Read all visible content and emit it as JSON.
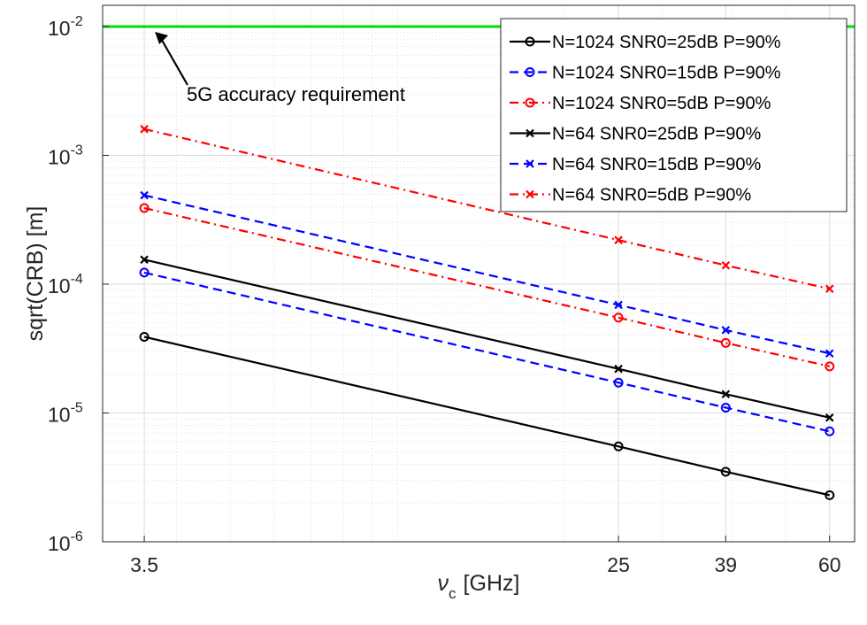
{
  "chart_data": {
    "type": "line",
    "xscale": "log",
    "yscale": "log",
    "xlabel": "ν",
    "xlabel_sub": "c",
    "xlabel_unit": "[GHz]",
    "ylabel": "sqrt(CRB) [m]",
    "xlim": [
      3.5,
      60
    ],
    "ylim": [
      1e-06,
      0.01
    ],
    "grid": true,
    "minor_grid": true,
    "legend_position": "top-right",
    "x_ticks": [
      {
        "value": 3.5,
        "label": "3.5"
      },
      {
        "value": 25,
        "label": "25"
      },
      {
        "value": 39,
        "label": "39"
      },
      {
        "value": 60,
        "label": "60"
      }
    ],
    "y_ticks": [
      {
        "value": 1e-06,
        "base": "10",
        "exp": "-6"
      },
      {
        "value": 1e-05,
        "base": "10",
        "exp": "-5"
      },
      {
        "value": 0.0001,
        "base": "10",
        "exp": "-4"
      },
      {
        "value": 0.001,
        "base": "10",
        "exp": "-3"
      },
      {
        "value": 0.01,
        "base": "10",
        "exp": "-2"
      }
    ],
    "x": [
      3.5,
      25,
      39,
      60
    ],
    "series": [
      {
        "name": "N=1024 SNR0=25dB P=90%",
        "color": "#000000",
        "dash": "solid",
        "marker": "circle",
        "values": [
          3.9e-05,
          5.5e-06,
          3.5e-06,
          2.3e-06
        ]
      },
      {
        "name": "N=1024 SNR0=15dB P=90%",
        "color": "#0000ff",
        "dash": "dashed",
        "marker": "circle",
        "values": [
          0.000123,
          1.72e-05,
          1.1e-05,
          7.2e-06
        ]
      },
      {
        "name": "N=1024 SNR0=5dB P=90%",
        "color": "#ff0000",
        "dash": "dashdot",
        "marker": "circle",
        "values": [
          0.00039,
          5.5e-05,
          3.5e-05,
          2.3e-05
        ]
      },
      {
        "name": "N=64 SNR0=25dB P=90%",
        "color": "#000000",
        "dash": "solid",
        "marker": "x",
        "values": [
          0.000155,
          2.2e-05,
          1.4e-05,
          9.2e-06
        ]
      },
      {
        "name": "N=64 SNR0=15dB P=90%",
        "color": "#0000ff",
        "dash": "dashed",
        "marker": "x",
        "values": [
          0.00049,
          6.9e-05,
          4.4e-05,
          2.9e-05
        ]
      },
      {
        "name": "N=64 SNR0=5dB P=90%",
        "color": "#ff0000",
        "dash": "dashdot",
        "marker": "x",
        "values": [
          0.0016,
          0.00022,
          0.00014,
          9.2e-05
        ]
      }
    ],
    "reference_line": {
      "y": 0.01,
      "color": "#00dd00"
    },
    "annotation": {
      "text": "5G accuracy requirement",
      "points_to_x": 3.5,
      "points_to_y": 0.01
    }
  }
}
